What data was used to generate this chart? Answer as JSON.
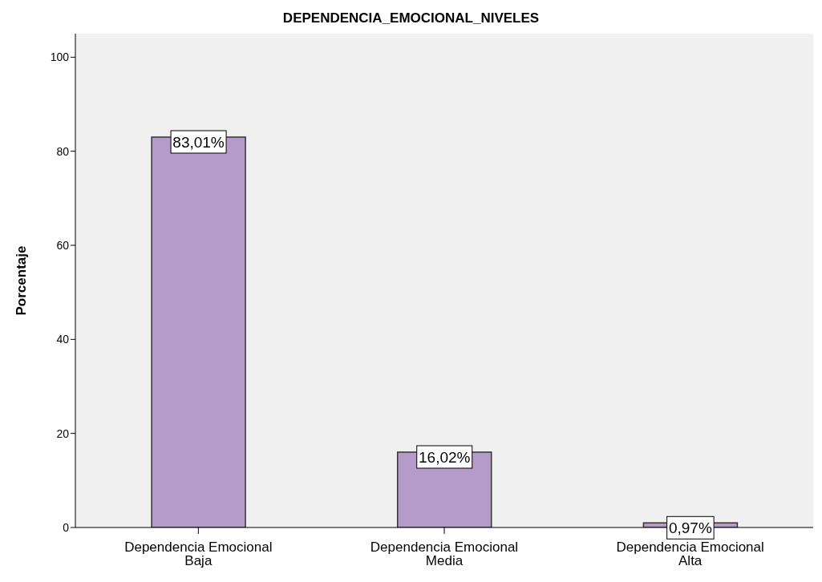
{
  "chart_data": {
    "type": "bar",
    "title": "DEPENDENCIA_EMOCIONAL_NIVELES",
    "ylabel": "Porcentaje",
    "categories": [
      "Dependencia Emocional Baja",
      "Dependencia Emocional Media",
      "Dependencia Emocional Alta"
    ],
    "values": [
      83.01,
      16.02,
      0.97
    ],
    "value_labels": [
      "83,01%",
      "16,02%",
      "0,97%"
    ],
    "color": "#b59bca",
    "ylim": [
      0,
      105
    ],
    "yticks": [
      0,
      20,
      40,
      60,
      80,
      100
    ],
    "grid": false
  }
}
